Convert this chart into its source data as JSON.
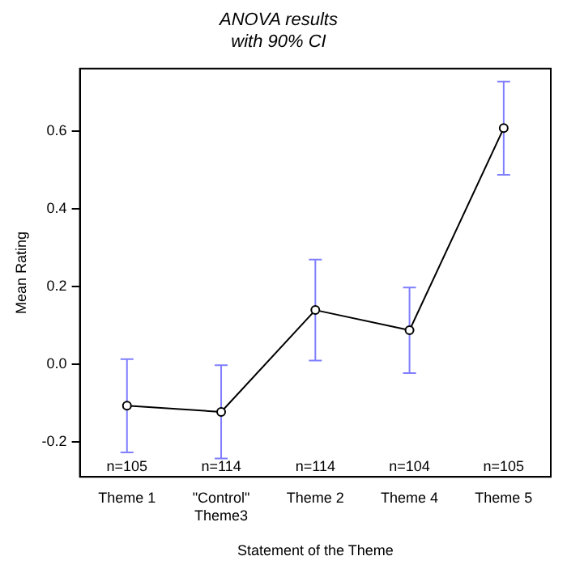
{
  "chart_data": {
    "type": "line",
    "title": "ANOVA results",
    "subtitle": "with 90% CI",
    "xlabel": "Statement of the Theme",
    "ylabel": "Mean Rating",
    "categories": [
      "Theme 1",
      "\"Control\"\nTheme3",
      "Theme 2",
      "Theme 4",
      "Theme 5"
    ],
    "series": [
      {
        "color": "#000000",
        "values": [
          -0.107,
          -0.123,
          0.139,
          0.087,
          0.607
        ],
        "errors": [
          0.12,
          0.12,
          0.13,
          0.11,
          0.12
        ]
      }
    ],
    "ylim": [
      -0.29,
      0.76
    ],
    "yticks": [
      {
        "value": -0.2,
        "label": "-0.2"
      },
      {
        "value": 0,
        "label": "0.0"
      },
      {
        "value": 0.2,
        "label": "0.2"
      },
      {
        "value": 0.4,
        "label": "0.4"
      },
      {
        "value": 0.6,
        "label": "0.6"
      }
    ],
    "annotations": [
      "n=105",
      "n=114",
      "n=114",
      "n=104",
      "n=105"
    ],
    "grid": false,
    "legend": false,
    "marker": "circle",
    "line_style": "solid"
  }
}
